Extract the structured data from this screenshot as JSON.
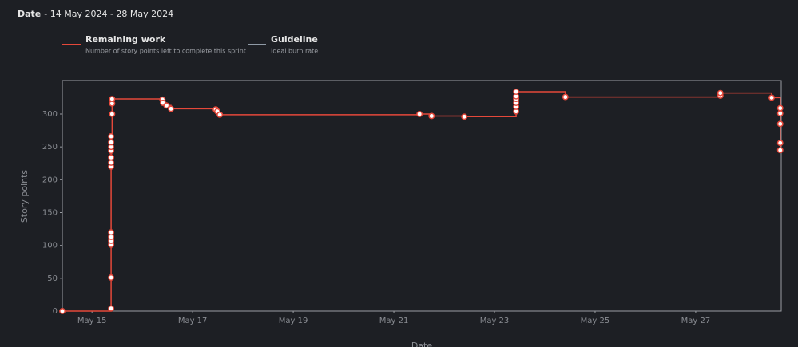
{
  "chart_data": {
    "type": "step",
    "title": "Date",
    "subtitle": "- 14 May 2024 - 28 May 2024",
    "xlabel": "Date",
    "ylabel": "Story points",
    "xlim": [
      14.41,
      28.7
    ],
    "ylim": [
      0,
      351
    ],
    "xticks": [
      {
        "value": 15,
        "label": "May 15"
      },
      {
        "value": 17,
        "label": "May 17"
      },
      {
        "value": 19,
        "label": "May 19"
      },
      {
        "value": 21,
        "label": "May 21"
      },
      {
        "value": 23,
        "label": "May 23"
      },
      {
        "value": 25,
        "label": "May 25"
      },
      {
        "value": 27,
        "label": "May 27"
      }
    ],
    "yticks": [
      0,
      50,
      100,
      150,
      200,
      250,
      300
    ],
    "series": [
      {
        "name": "Remaining work",
        "description": "Number of story points left to complete this sprint",
        "color": "#e5483a",
        "x": [
          14.41,
          15.38,
          15.38,
          15.38,
          15.38,
          15.38,
          15.38,
          15.38,
          15.38,
          15.38,
          15.38,
          15.38,
          15.38,
          15.38,
          15.4,
          15.4,
          15.4,
          16.4,
          16.41,
          16.48,
          16.57,
          17.46,
          17.49,
          17.54,
          21.51,
          21.75,
          22.4,
          23.43,
          23.43,
          23.43,
          23.43,
          23.43,
          23.43,
          24.41,
          27.49,
          27.49,
          28.51,
          28.68,
          28.68,
          28.68,
          28.68,
          28.68
        ],
        "values": [
          0,
          4,
          51,
          101,
          107,
          113,
          120,
          220,
          226,
          234,
          244,
          250,
          257,
          266,
          300,
          316,
          323,
          322,
          317,
          313,
          308,
          307,
          304,
          299,
          300,
          297,
          296,
          304,
          311,
          317,
          323,
          327,
          334,
          326,
          328,
          332,
          325,
          309,
          301,
          285,
          256,
          245
        ]
      },
      {
        "name": "Guideline",
        "description": "Ideal burn rate",
        "color": "#8f9aa6"
      }
    ]
  }
}
